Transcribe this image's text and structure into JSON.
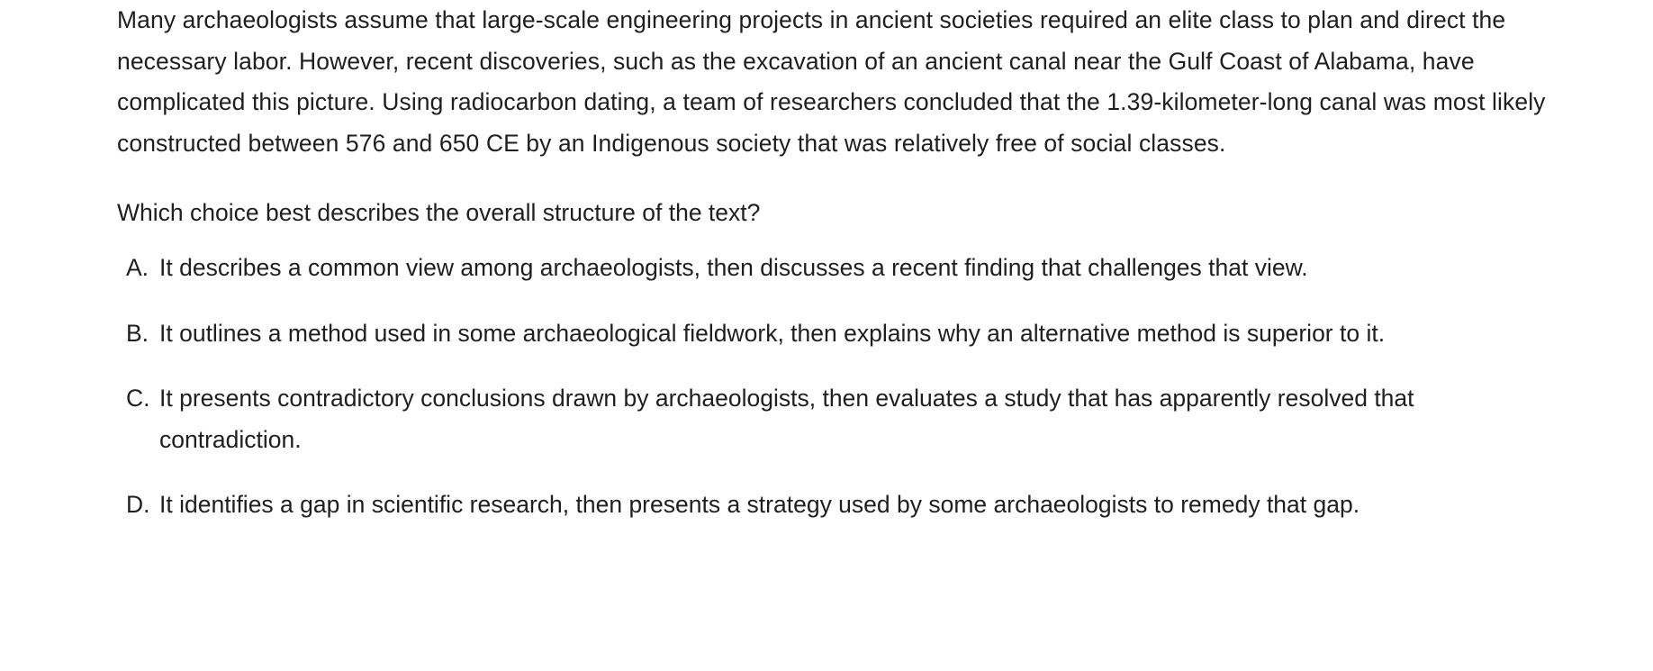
{
  "passage": "Many archaeologists assume that large-scale engineering projects in ancient societies required an elite class to plan and direct the necessary labor. However, recent discoveries, such as the excavation of an ancient canal near the Gulf Coast of Alabama, have complicated this picture. Using radiocarbon dating, a team of researchers concluded that the 1.39-kilometer-long canal was most likely constructed between 576 and 650 CE by an Indigenous society that was relatively free of social classes.",
  "question": "Which choice best describes the overall structure of the text?",
  "choices": [
    {
      "letter": "A.",
      "text": "It describes a common view among archaeologists, then discusses a recent finding that challenges that view."
    },
    {
      "letter": "B.",
      "text": "It outlines a method used in some archaeological fieldwork, then explains why an alternative method is superior to it."
    },
    {
      "letter": "C.",
      "text": "It presents contradictory conclusions drawn by archaeologists, then evaluates a study that has apparently resolved that contradiction."
    },
    {
      "letter": "D.",
      "text": "It identifies a gap in scientific research, then presents a strategy used by some archaeologists to remedy that gap."
    }
  ]
}
